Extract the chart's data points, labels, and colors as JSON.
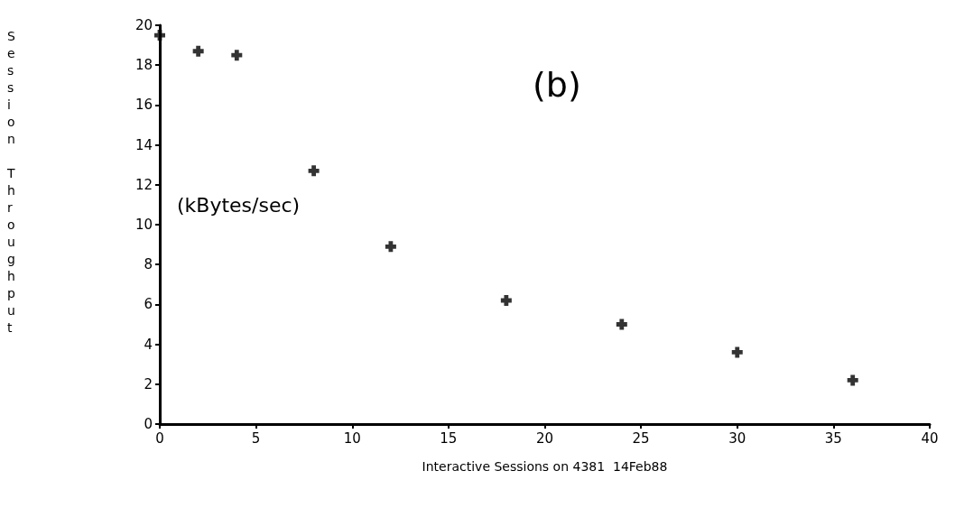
{
  "chart_data": {
    "type": "scatter",
    "xlabel": "Interactive Sessions on 4381  14Feb88",
    "ylabel": "Session Throughput",
    "annotations": [
      "(b)",
      "(kBytes/sec)"
    ],
    "x": [
      0,
      2,
      4,
      8,
      12,
      18,
      24,
      30,
      36
    ],
    "series": [
      {
        "color": "#000000",
        "values": [
          19.5,
          18.7,
          18.5,
          12.7,
          8.9,
          6.2,
          5.0,
          3.6,
          2.2
        ]
      }
    ],
    "marker": "cross",
    "grid": false,
    "xlim": [
      0,
      40
    ],
    "xticks": [
      0,
      5,
      10,
      15,
      20,
      25,
      30,
      35,
      40
    ],
    "ylim": [
      0,
      20
    ],
    "yticks": [
      0,
      2,
      4,
      6,
      8,
      10,
      12,
      14,
      16,
      18,
      20
    ]
  }
}
